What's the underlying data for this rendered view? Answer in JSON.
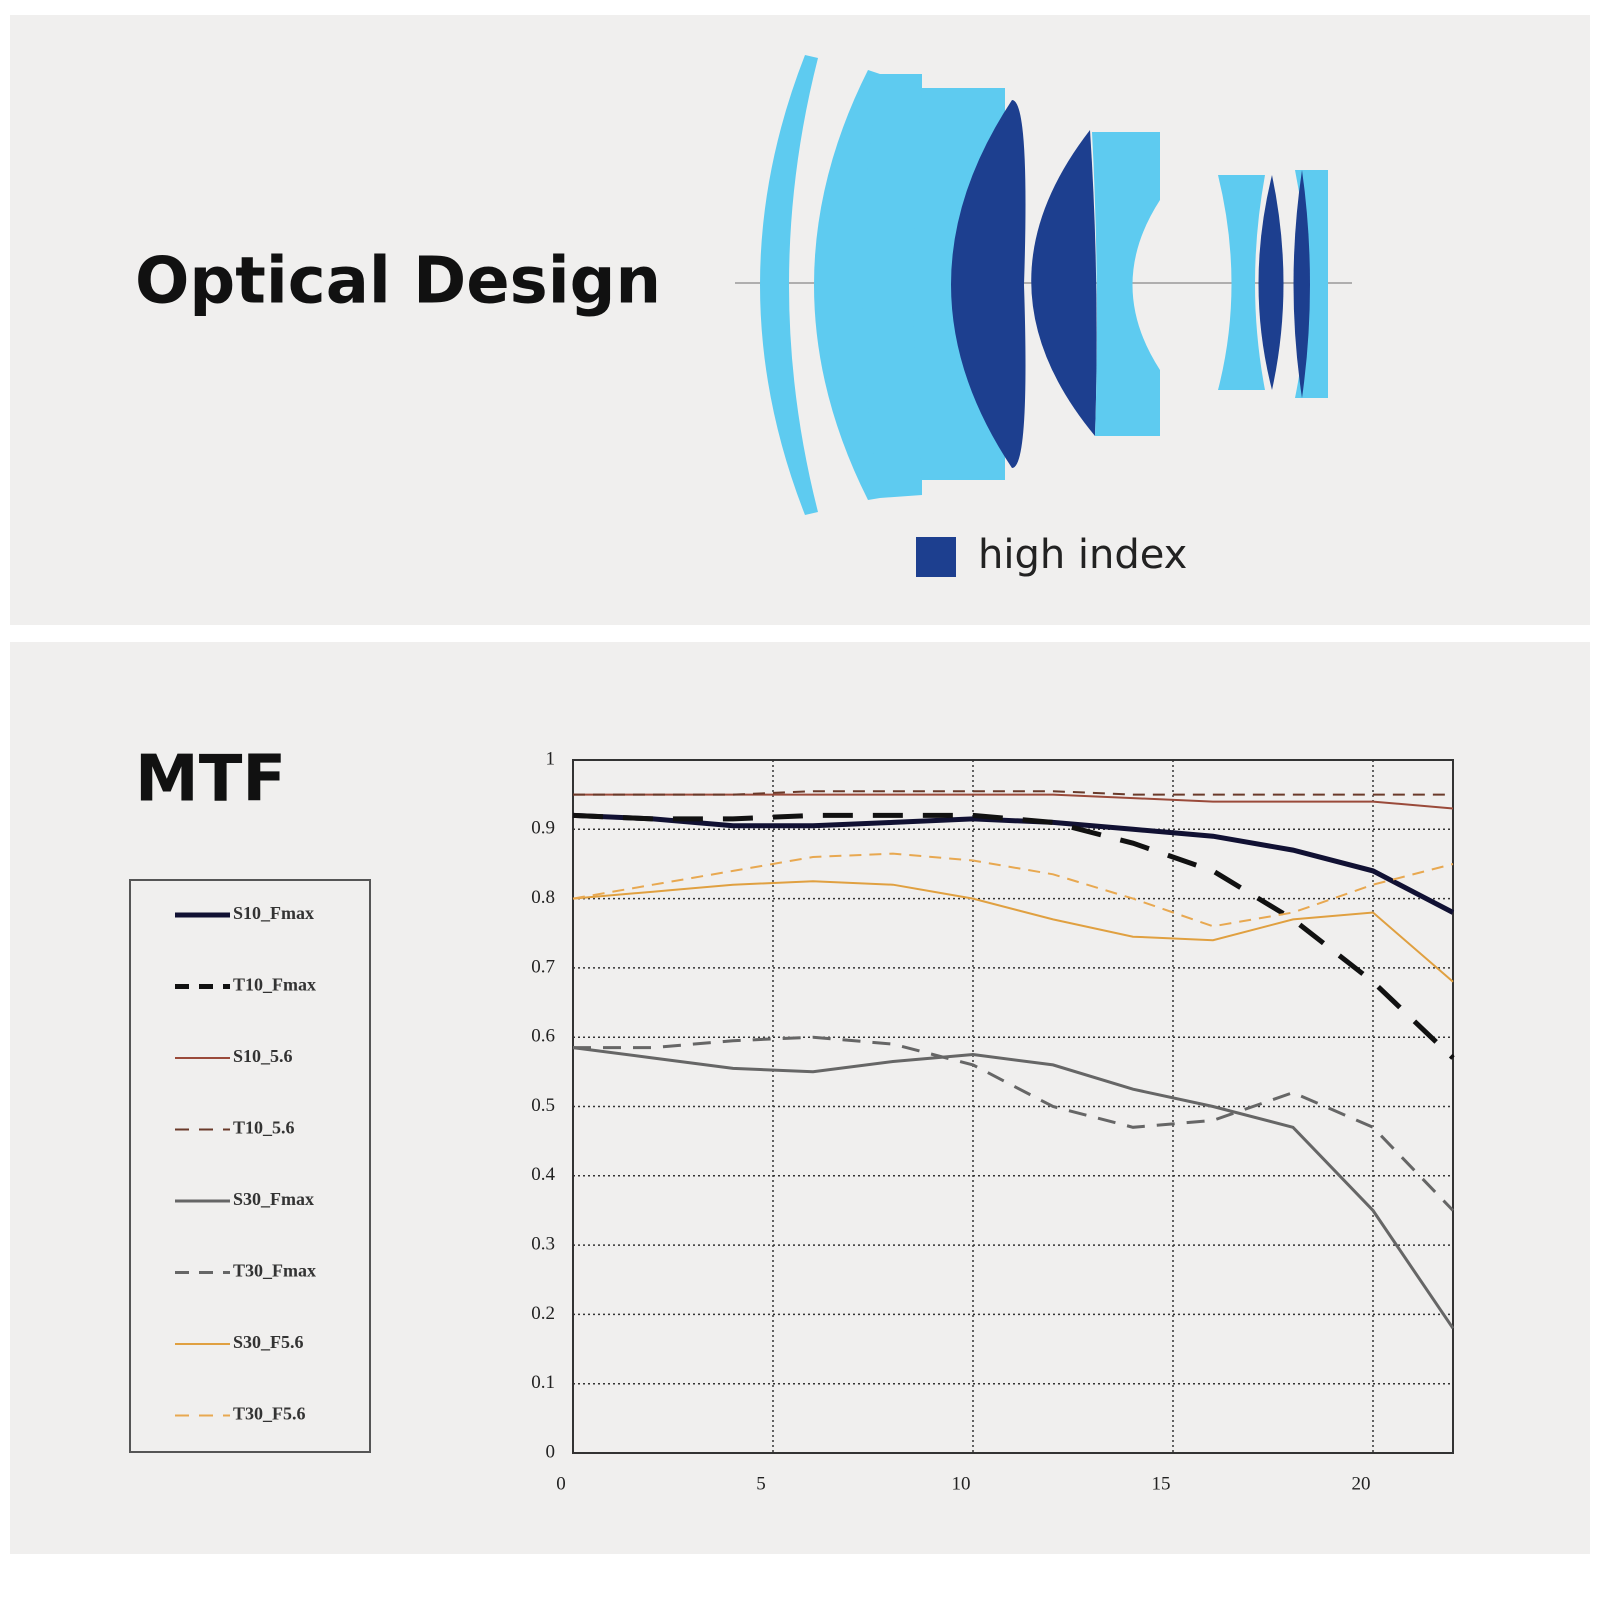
{
  "optical_design": {
    "title": "Optical Design",
    "legend": "high index"
  },
  "chart_data": {
    "type": "line",
    "title": "MTF",
    "x": [
      0,
      2,
      4,
      6,
      8,
      10,
      12,
      14,
      16,
      18,
      20,
      22
    ],
    "xlim": [
      0,
      22
    ],
    "xticks": [
      0,
      5,
      10,
      15,
      20
    ],
    "ylim": [
      0,
      1
    ],
    "yticks": [
      0,
      0.1,
      0.2,
      0.3,
      0.4,
      0.5,
      0.6,
      0.7,
      0.8,
      0.9,
      1
    ],
    "grid": true,
    "series": [
      {
        "name": "S10_Fmax",
        "color": "#111133",
        "dash": false,
        "width": 5,
        "values": [
          0.92,
          0.915,
          0.905,
          0.905,
          0.91,
          0.915,
          0.91,
          0.9,
          0.89,
          0.87,
          0.84,
          0.78
        ]
      },
      {
        "name": "T10_Fmax",
        "color": "#111111",
        "dash": true,
        "width": 5,
        "values": [
          0.92,
          0.915,
          0.915,
          0.92,
          0.92,
          0.92,
          0.91,
          0.88,
          0.84,
          0.77,
          0.68,
          0.57
        ]
      },
      {
        "name": "S10_5.6",
        "color": "#9a4a3a",
        "dash": false,
        "width": 2,
        "values": [
          0.95,
          0.95,
          0.95,
          0.95,
          0.95,
          0.95,
          0.95,
          0.945,
          0.94,
          0.94,
          0.94,
          0.93
        ]
      },
      {
        "name": "T10_5.6",
        "color": "#6a3a2a",
        "dash": true,
        "width": 2,
        "values": [
          0.95,
          0.95,
          0.95,
          0.955,
          0.955,
          0.955,
          0.955,
          0.95,
          0.95,
          0.95,
          0.95,
          0.95
        ]
      },
      {
        "name": "S30_Fmax",
        "color": "#666666",
        "dash": false,
        "width": 3,
        "values": [
          0.585,
          0.57,
          0.555,
          0.55,
          0.565,
          0.575,
          0.56,
          0.525,
          0.5,
          0.47,
          0.35,
          0.18
        ]
      },
      {
        "name": "T30_Fmax",
        "color": "#666666",
        "dash": true,
        "width": 3,
        "values": [
          0.585,
          0.585,
          0.595,
          0.6,
          0.59,
          0.56,
          0.5,
          0.47,
          0.48,
          0.52,
          0.47,
          0.35
        ]
      },
      {
        "name": "S30_F5.6",
        "color": "#e0a040",
        "dash": false,
        "width": 2,
        "values": [
          0.8,
          0.81,
          0.82,
          0.825,
          0.82,
          0.8,
          0.77,
          0.745,
          0.74,
          0.77,
          0.78,
          0.68
        ]
      },
      {
        "name": "T30_F5.6",
        "color": "#e8a850",
        "dash": true,
        "width": 2,
        "values": [
          0.8,
          0.82,
          0.84,
          0.86,
          0.865,
          0.855,
          0.835,
          0.8,
          0.76,
          0.78,
          0.82,
          0.85
        ]
      }
    ]
  }
}
